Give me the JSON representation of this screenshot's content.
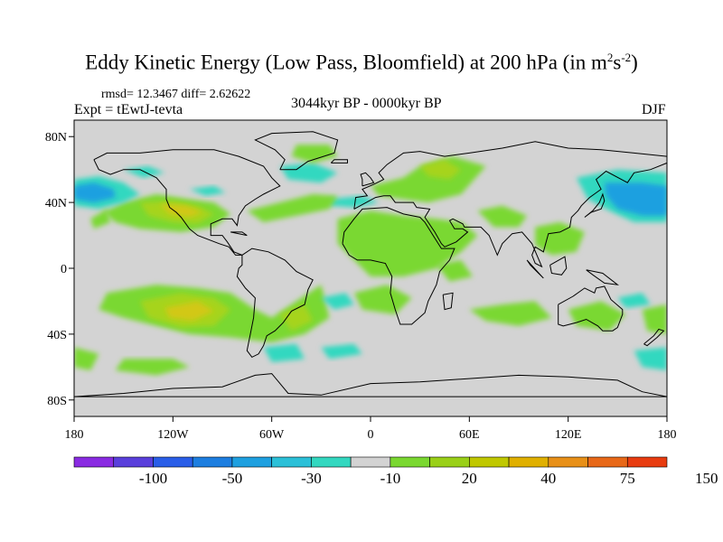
{
  "title": {
    "main": "Eddy Kinetic Energy (Low Pass, Bloomfield) at 200 hPa (in m",
    "sup1": "2",
    "s": "s",
    "sup2": "-2",
    "close": ")"
  },
  "stats": "rmsd= 12.3467 diff= 2.62622",
  "experiment": "Expt = tEwtJ-tevta",
  "period": "3044kyr BP - 0000kyr BP",
  "season": "DJF",
  "map": {
    "lat_labels": [
      "80N",
      "40N",
      "0",
      "40S",
      "80S"
    ],
    "lat_values": [
      80,
      40,
      0,
      -40,
      -80
    ],
    "lon_labels": [
      "180",
      "120W",
      "60W",
      "0",
      "60E",
      "120E",
      "180"
    ],
    "lon_values": [
      -180,
      -120,
      -60,
      0,
      60,
      120,
      180
    ],
    "lat_range": [
      -90,
      90
    ],
    "lon_range": [
      -180,
      180
    ],
    "background_color": "#d3d3d3"
  },
  "colorbar": {
    "colors": [
      "#8a2be2",
      "#5a3fdc",
      "#2a5ee8",
      "#1d7ee0",
      "#1ea0e0",
      "#2bc0d8",
      "#33d8c0",
      "#d3d3d3",
      "#7ad830",
      "#9ad018",
      "#c0c800",
      "#e0b000",
      "#e89018",
      "#e86818",
      "#e83c10"
    ],
    "labels": [
      "-100",
      "-50",
      "-30",
      "-10",
      "20",
      "40",
      "75",
      "150"
    ]
  },
  "legend_colors": {
    "c20": "#7ad830",
    "c40": "#a6d41c",
    "c60": "#d2c818",
    "c75": "#e0a820",
    "cm10": "#33d8c0",
    "cm30": "#1ea0e0"
  }
}
